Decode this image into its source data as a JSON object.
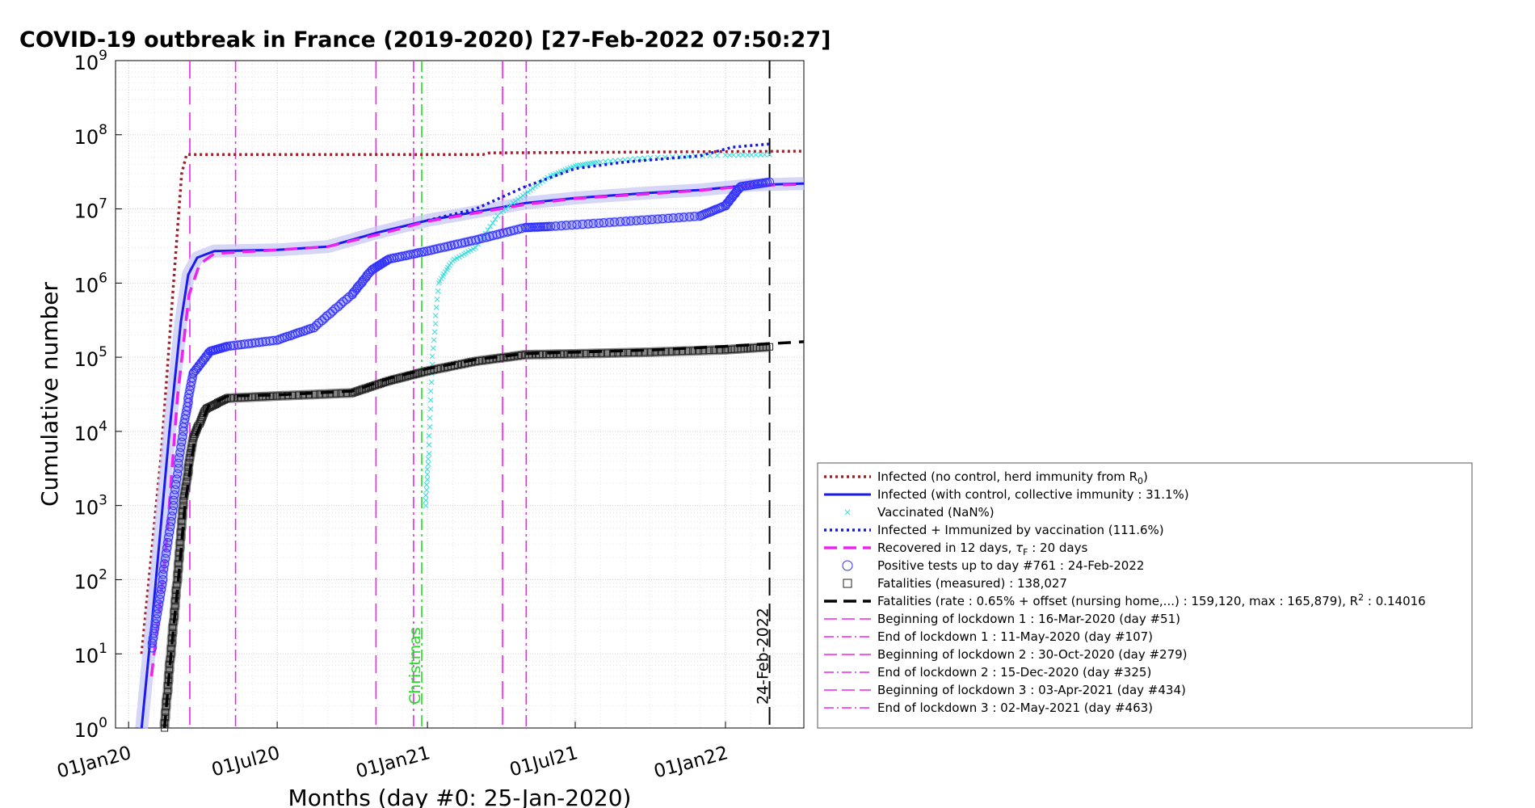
{
  "chart_data": {
    "type": "line",
    "title": "COVID-19 outbreak in France (2019-2020) [27-Feb-2022 07:50:27]",
    "xlabel": "Months (day #0: 25-Jan-2020)",
    "ylabel": "Cumulative number",
    "y_scale": "log",
    "ylim": [
      1,
      1000000000
    ],
    "xlim": [
      "2019-12-16",
      "2022-04-07"
    ],
    "x_ticks": [
      {
        "date": "2020-01-01",
        "label": "01Jan20"
      },
      {
        "date": "2020-07-01",
        "label": "01Jul20"
      },
      {
        "date": "2021-01-01",
        "label": "01Jan21"
      },
      {
        "date": "2021-07-01",
        "label": "01Jul21"
      },
      {
        "date": "2022-01-01",
        "label": "01Jan22"
      }
    ],
    "y_ticks": [
      {
        "value": 1,
        "base": "10",
        "exp": "0"
      },
      {
        "value": 10,
        "base": "10",
        "exp": "1"
      },
      {
        "value": 100,
        "base": "10",
        "exp": "2"
      },
      {
        "value": 1000,
        "base": "10",
        "exp": "3"
      },
      {
        "value": 10000,
        "base": "10",
        "exp": "4"
      },
      {
        "value": 100000,
        "base": "10",
        "exp": "5"
      },
      {
        "value": 1000000,
        "base": "10",
        "exp": "6"
      },
      {
        "value": 10000000,
        "base": "10",
        "exp": "7"
      },
      {
        "value": 100000000,
        "base": "10",
        "exp": "8"
      },
      {
        "value": 1000000000,
        "base": "10",
        "exp": "9"
      }
    ],
    "grid": true,
    "legend_position": "bottom-right, outside the axes",
    "series": [
      {
        "id": "no-control",
        "name": "Infected (no control, herd immunity from R",
        "name_sub": "0",
        "name_tail": ")",
        "color": "#a0202a",
        "style": "dotted",
        "points": [
          [
            "2020-01-17",
            10
          ],
          [
            "2020-02-10",
            5000
          ],
          [
            "2020-02-25",
            1000000
          ],
          [
            "2020-03-06",
            30000000
          ],
          [
            "2020-03-12",
            54000000
          ],
          [
            "2021-03-10",
            54000000
          ],
          [
            "2021-03-18",
            57000000
          ],
          [
            "2022-04-07",
            60000000
          ]
        ]
      },
      {
        "id": "infected-control",
        "name": "Infected (with control, collective immunity : 31.1%)",
        "color": "#1a1aee",
        "style": "solid",
        "band": true,
        "points": [
          [
            "2020-01-17",
            1
          ],
          [
            "2020-02-01",
            50
          ],
          [
            "2020-02-20",
            10000
          ],
          [
            "2020-03-05",
            300000
          ],
          [
            "2020-03-14",
            1300000
          ],
          [
            "2020-03-25",
            2200000
          ],
          [
            "2020-04-15",
            2700000
          ],
          [
            "2020-07-01",
            2800000
          ],
          [
            "2020-09-01",
            3100000
          ],
          [
            "2020-11-01",
            4800000
          ],
          [
            "2021-01-01",
            7000000
          ],
          [
            "2021-05-01",
            12000000
          ],
          [
            "2021-07-01",
            14000000
          ],
          [
            "2021-10-01",
            16500000
          ],
          [
            "2021-12-01",
            18000000
          ],
          [
            "2022-02-01",
            21000000
          ],
          [
            "2022-04-07",
            22000000
          ]
        ]
      },
      {
        "id": "vaccinated",
        "name": "Vaccinated (NaN%)",
        "color": "#33dddd",
        "style": "markers-x",
        "points": [
          [
            "2020-12-30",
            1000
          ],
          [
            "2021-01-03",
            5000
          ],
          [
            "2021-01-07",
            80000
          ],
          [
            "2021-01-15",
            1000000
          ],
          [
            "2021-02-01",
            2000000
          ],
          [
            "2021-03-01",
            3000000
          ],
          [
            "2021-04-01",
            9000000
          ],
          [
            "2021-05-01",
            16000000
          ],
          [
            "2021-06-01",
            28000000
          ],
          [
            "2021-07-01",
            38000000
          ],
          [
            "2021-08-01",
            43000000
          ],
          [
            "2021-10-01",
            49000000
          ],
          [
            "2022-01-01",
            53000000
          ],
          [
            "2022-02-24",
            54000000
          ]
        ]
      },
      {
        "id": "immunized",
        "name": "Infected + Immunized by vaccination (111.6%)",
        "color": "#1818dd",
        "style": "dotted",
        "points": [
          [
            "2021-01-01",
            7000000
          ],
          [
            "2021-03-01",
            10000000
          ],
          [
            "2021-05-01",
            20000000
          ],
          [
            "2021-07-01",
            35000000
          ],
          [
            "2021-09-01",
            43000000
          ],
          [
            "2021-12-01",
            52000000
          ],
          [
            "2022-01-10",
            68000000
          ],
          [
            "2022-02-24",
            75000000
          ]
        ]
      },
      {
        "id": "recovered",
        "name": "Recovered in 12 days, ",
        "name_tail": " : 20 days",
        "name_tau": "τ",
        "name_tau_sub": "F",
        "color": "#ee22ee",
        "style": "dashed",
        "points": [
          [
            "2020-01-29",
            5
          ],
          [
            "2020-02-15",
            200
          ],
          [
            "2020-03-01",
            30000
          ],
          [
            "2020-03-15",
            700000
          ],
          [
            "2020-03-28",
            1800000
          ],
          [
            "2020-04-15",
            2500000
          ],
          [
            "2020-07-01",
            2800000
          ],
          [
            "2020-09-01",
            3100000
          ],
          [
            "2020-11-01",
            4500000
          ],
          [
            "2021-01-01",
            6800000
          ],
          [
            "2021-05-01",
            11500000
          ],
          [
            "2021-07-01",
            13800000
          ],
          [
            "2021-10-01",
            16000000
          ],
          [
            "2021-12-01",
            17800000
          ],
          [
            "2022-02-01",
            20500000
          ],
          [
            "2022-04-07",
            21500000
          ]
        ]
      },
      {
        "id": "positive-tests",
        "name": "Positive tests up to day #761 : 24-Feb-2022",
        "color": "#3030ff",
        "style": "thick-circles",
        "points": [
          [
            "2020-01-30",
            12
          ],
          [
            "2020-02-12",
            100
          ],
          [
            "2020-02-25",
            1000
          ],
          [
            "2020-03-08",
            10000
          ],
          [
            "2020-03-20",
            60000
          ],
          [
            "2020-04-10",
            120000
          ],
          [
            "2020-05-01",
            140000
          ],
          [
            "2020-07-01",
            170000
          ],
          [
            "2020-08-15",
            250000
          ],
          [
            "2020-10-01",
            700000
          ],
          [
            "2020-10-25",
            1500000
          ],
          [
            "2020-11-15",
            2100000
          ],
          [
            "2021-01-01",
            2700000
          ],
          [
            "2021-03-01",
            3800000
          ],
          [
            "2021-05-01",
            5600000
          ],
          [
            "2021-06-01",
            5800000
          ],
          [
            "2021-09-01",
            6800000
          ],
          [
            "2021-12-01",
            8000000
          ],
          [
            "2022-01-01",
            11000000
          ],
          [
            "2022-01-20",
            20000000
          ],
          [
            "2022-02-24",
            23000000
          ]
        ]
      },
      {
        "id": "fatalities-measured",
        "name": "Fatalities (measured) : 138,027",
        "color": "#222222",
        "style": "thick-squares",
        "points": [
          [
            "2020-02-14",
            1
          ],
          [
            "2020-02-22",
            10
          ],
          [
            "2020-03-01",
            100
          ],
          [
            "2020-03-08",
            1000
          ],
          [
            "2020-03-20",
            8000
          ],
          [
            "2020-04-05",
            20000
          ],
          [
            "2020-05-01",
            28000
          ],
          [
            "2020-07-01",
            30000
          ],
          [
            "2020-10-01",
            33000
          ],
          [
            "2020-11-15",
            48000
          ],
          [
            "2021-01-01",
            65000
          ],
          [
            "2021-03-01",
            88000
          ],
          [
            "2021-05-01",
            108000
          ],
          [
            "2021-07-01",
            111000
          ],
          [
            "2021-10-01",
            117000
          ],
          [
            "2022-01-01",
            126000
          ],
          [
            "2022-02-24",
            138027
          ]
        ]
      },
      {
        "id": "fatalities-model",
        "name": "Fatalities (rate : 0.65% + offset (nursing home,...) : 159,120, max : 165,879), R",
        "name_sup": "2",
        "name_tail": " : 0.14016",
        "color": "#000000",
        "style": "dashed",
        "points": [
          [
            "2020-02-14",
            1
          ],
          [
            "2020-02-22",
            10
          ],
          [
            "2020-03-02",
            100
          ],
          [
            "2020-03-10",
            1000
          ],
          [
            "2020-03-22",
            8000
          ],
          [
            "2020-04-08",
            22000
          ],
          [
            "2020-05-01",
            30000
          ],
          [
            "2020-07-01",
            31000
          ],
          [
            "2020-10-01",
            35000
          ],
          [
            "2020-11-15",
            52000
          ],
          [
            "2021-01-01",
            70000
          ],
          [
            "2021-03-01",
            93000
          ],
          [
            "2021-05-01",
            112000
          ],
          [
            "2021-07-01",
            117000
          ],
          [
            "2021-10-01",
            125000
          ],
          [
            "2022-01-01",
            140000
          ],
          [
            "2022-02-24",
            152000
          ],
          [
            "2022-04-07",
            162000
          ]
        ]
      }
    ],
    "vertical_lines": [
      {
        "id": "lockdown1-begin",
        "date": "2020-03-16",
        "name": "Beginning of lockdown 1 : 16-Mar-2020 (day #51)",
        "color": "#ee22ee",
        "style": "dashed"
      },
      {
        "id": "lockdown1-end",
        "date": "2020-05-11",
        "name": "End of lockdown 1 : 11-May-2020 (day #107)",
        "color": "#ee22ee",
        "style": "dashdot"
      },
      {
        "id": "lockdown2-begin",
        "date": "2020-10-30",
        "name": "Beginning of lockdown 2 : 30-Oct-2020 (day #279)",
        "color": "#ee22ee",
        "style": "dashed"
      },
      {
        "id": "lockdown2-end",
        "date": "2020-12-15",
        "name": "End of lockdown 2 : 15-Dec-2020 (day #325)",
        "color": "#ee22ee",
        "style": "dashdot"
      },
      {
        "id": "lockdown3-begin",
        "date": "2021-04-03",
        "name": "Beginning of lockdown 3 : 03-Apr-2021 (day #434)",
        "color": "#ee22ee",
        "style": "dashed"
      },
      {
        "id": "lockdown3-end",
        "date": "2021-05-02",
        "name": "End of lockdown 3 : 02-May-2021 (day #463)",
        "color": "#ee22ee",
        "style": "dashdot"
      },
      {
        "id": "christmas",
        "date": "2020-12-25",
        "label": "Christmas",
        "color": "#22dd22",
        "style": "dashdot"
      },
      {
        "id": "today",
        "date": "2022-02-24",
        "label": "24-Feb-2022",
        "color": "#000000",
        "style": "dashed"
      }
    ]
  }
}
